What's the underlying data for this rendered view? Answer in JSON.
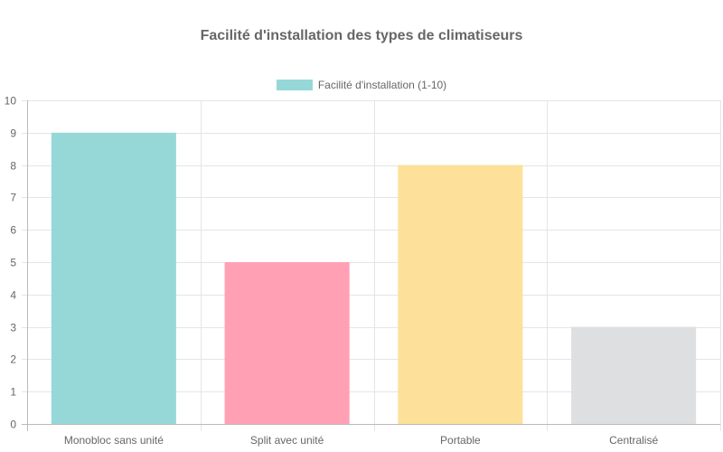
{
  "chart_data": {
    "type": "bar",
    "title": "Facilité d'installation des types de climatiseurs",
    "categories": [
      "Monobloc sans unité",
      "Split avec unité",
      "Portable",
      "Centralisé"
    ],
    "series": [
      {
        "name": "Facilité d'installation (1-10)",
        "values": [
          9,
          5,
          8,
          3
        ],
        "colors": [
          "#96d8d8",
          "#ffa0b4",
          "#fde09a",
          "#dddfe1"
        ]
      }
    ],
    "legend_color": "#96d8d8",
    "ylim": [
      0,
      10
    ],
    "yticks": [
      0,
      1,
      2,
      3,
      4,
      5,
      6,
      7,
      8,
      9,
      10
    ],
    "grid": true,
    "legend_position": "top"
  }
}
